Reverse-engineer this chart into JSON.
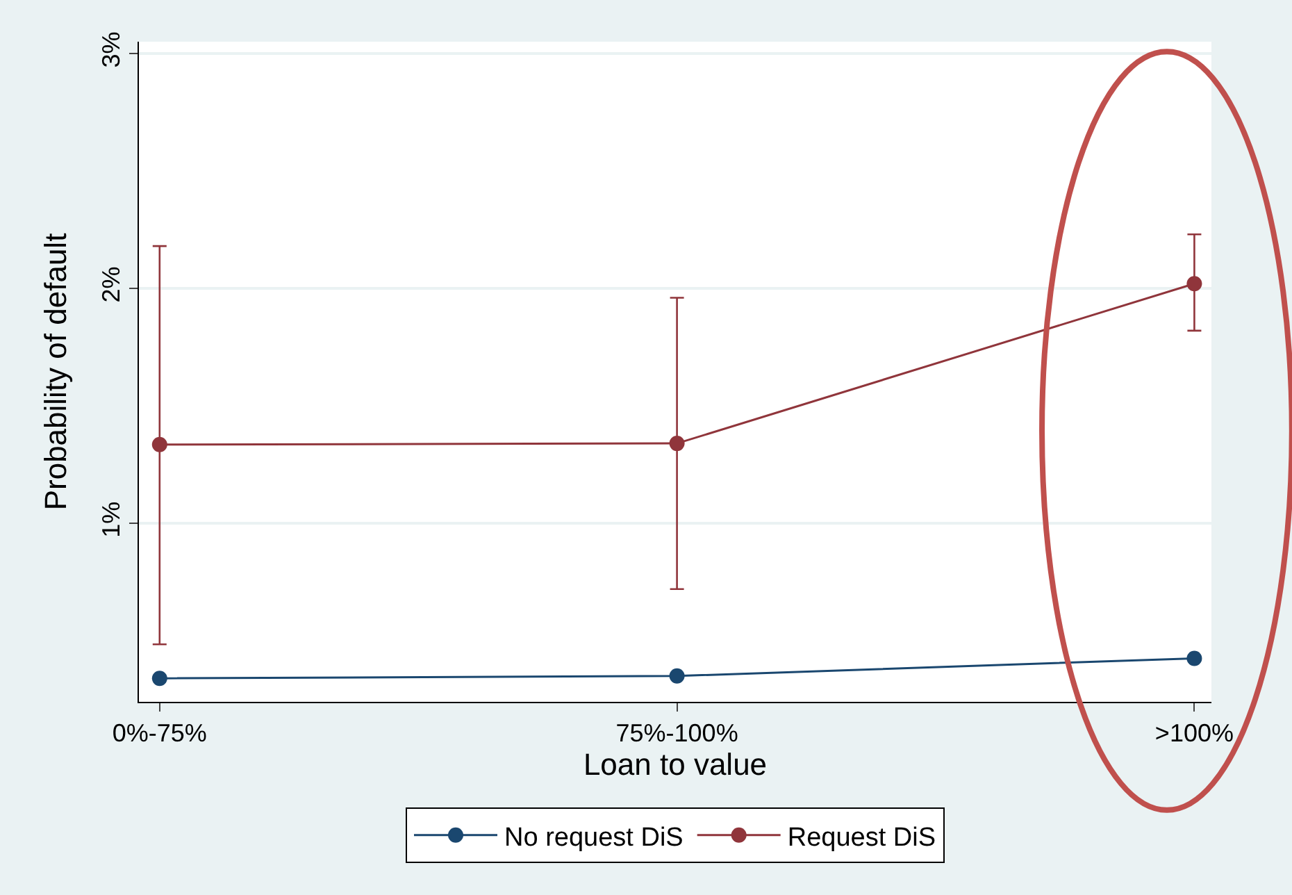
{
  "chart_data": {
    "type": "line",
    "xlabel": "Loan to value",
    "ylabel": "Probability of default",
    "categories": [
      "0%-75%",
      "75%-100%",
      ">100%"
    ],
    "series": [
      {
        "name": "No request DiS",
        "color": "#1a476f",
        "values": [
          0.34,
          0.35,
          0.425
        ]
      },
      {
        "name": "Request DiS",
        "color": "#90353b",
        "values": [
          1.335,
          1.34,
          2.02
        ],
        "errors": [
          [
            0.485,
            2.18
          ],
          [
            0.72,
            1.96
          ],
          [
            1.82,
            2.23
          ]
        ]
      }
    ],
    "ylim": [
      0.24,
      3.05
    ],
    "yticks": [
      {
        "value": 1,
        "label": "1%"
      },
      {
        "value": 2,
        "label": "2%"
      },
      {
        "value": 3,
        "label": "3%"
      }
    ],
    "grid": "y",
    "legend": "bottom",
    "marker": "circle",
    "line_style": "solid"
  }
}
